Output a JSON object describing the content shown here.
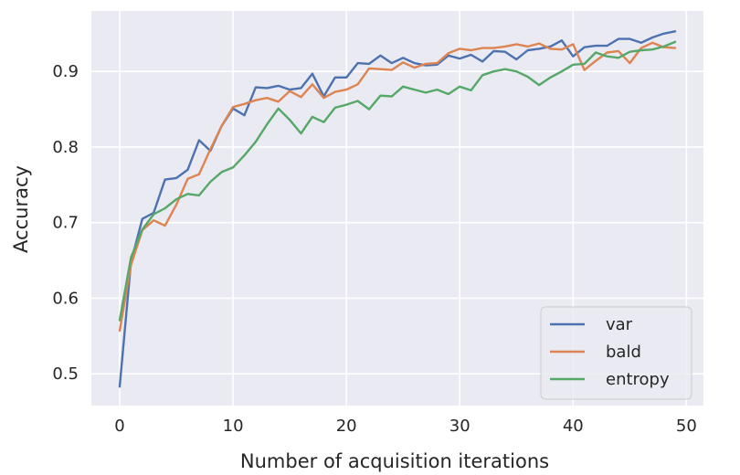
{
  "chart_data": {
    "type": "line",
    "xlabel": "Number of acquisition iterations",
    "ylabel": "Accuracy",
    "xlim": [
      -2.5,
      51.5
    ],
    "ylim": [
      0.458,
      0.98
    ],
    "x_ticks": [
      0,
      10,
      20,
      30,
      40,
      50
    ],
    "y_ticks": [
      0.5,
      0.6,
      0.7,
      0.8,
      0.9
    ],
    "x_tick_labels": [
      "0",
      "10",
      "20",
      "30",
      "40",
      "50"
    ],
    "y_tick_labels": [
      "0.5",
      "0.6",
      "0.7",
      "0.8",
      "0.9"
    ],
    "grid": true,
    "legend_position": "lower-right",
    "background_color": "#eaeaf2",
    "x": [
      0,
      1,
      2,
      3,
      4,
      5,
      6,
      7,
      8,
      9,
      10,
      11,
      12,
      13,
      14,
      15,
      16,
      17,
      18,
      19,
      20,
      21,
      22,
      23,
      24,
      25,
      26,
      27,
      28,
      29,
      30,
      31,
      32,
      33,
      34,
      35,
      36,
      37,
      38,
      39,
      40,
      41,
      42,
      43,
      44,
      45,
      46,
      47,
      48,
      49
    ],
    "series": [
      {
        "name": "var",
        "color": "#4c72b0",
        "values": [
          0.483,
          0.648,
          0.705,
          0.713,
          0.757,
          0.759,
          0.77,
          0.809,
          0.795,
          0.828,
          0.851,
          0.842,
          0.879,
          0.878,
          0.881,
          0.876,
          0.878,
          0.897,
          0.867,
          0.892,
          0.892,
          0.911,
          0.91,
          0.921,
          0.911,
          0.918,
          0.911,
          0.908,
          0.909,
          0.921,
          0.917,
          0.922,
          0.913,
          0.927,
          0.926,
          0.916,
          0.928,
          0.93,
          0.933,
          0.941,
          0.92,
          0.932,
          0.934,
          0.934,
          0.943,
          0.943,
          0.938,
          0.945,
          0.95,
          0.953
        ]
      },
      {
        "name": "bald",
        "color": "#dd8452",
        "values": [
          0.557,
          0.644,
          0.69,
          0.703,
          0.696,
          0.724,
          0.758,
          0.764,
          0.797,
          0.828,
          0.853,
          0.857,
          0.862,
          0.865,
          0.86,
          0.874,
          0.866,
          0.883,
          0.865,
          0.873,
          0.876,
          0.883,
          0.904,
          0.903,
          0.902,
          0.912,
          0.905,
          0.91,
          0.911,
          0.924,
          0.93,
          0.928,
          0.931,
          0.931,
          0.933,
          0.936,
          0.933,
          0.937,
          0.93,
          0.929,
          0.936,
          0.902,
          0.914,
          0.925,
          0.927,
          0.911,
          0.931,
          0.938,
          0.932,
          0.931
        ]
      },
      {
        "name": "entropy",
        "color": "#55a868",
        "values": [
          0.571,
          0.654,
          0.691,
          0.711,
          0.719,
          0.731,
          0.738,
          0.736,
          0.754,
          0.767,
          0.773,
          0.789,
          0.807,
          0.83,
          0.851,
          0.836,
          0.818,
          0.84,
          0.833,
          0.852,
          0.856,
          0.861,
          0.85,
          0.868,
          0.867,
          0.88,
          0.876,
          0.872,
          0.876,
          0.87,
          0.88,
          0.875,
          0.895,
          0.9,
          0.903,
          0.9,
          0.893,
          0.882,
          0.892,
          0.9,
          0.909,
          0.91,
          0.925,
          0.92,
          0.918,
          0.926,
          0.928,
          0.929,
          0.933,
          0.939
        ]
      }
    ]
  }
}
